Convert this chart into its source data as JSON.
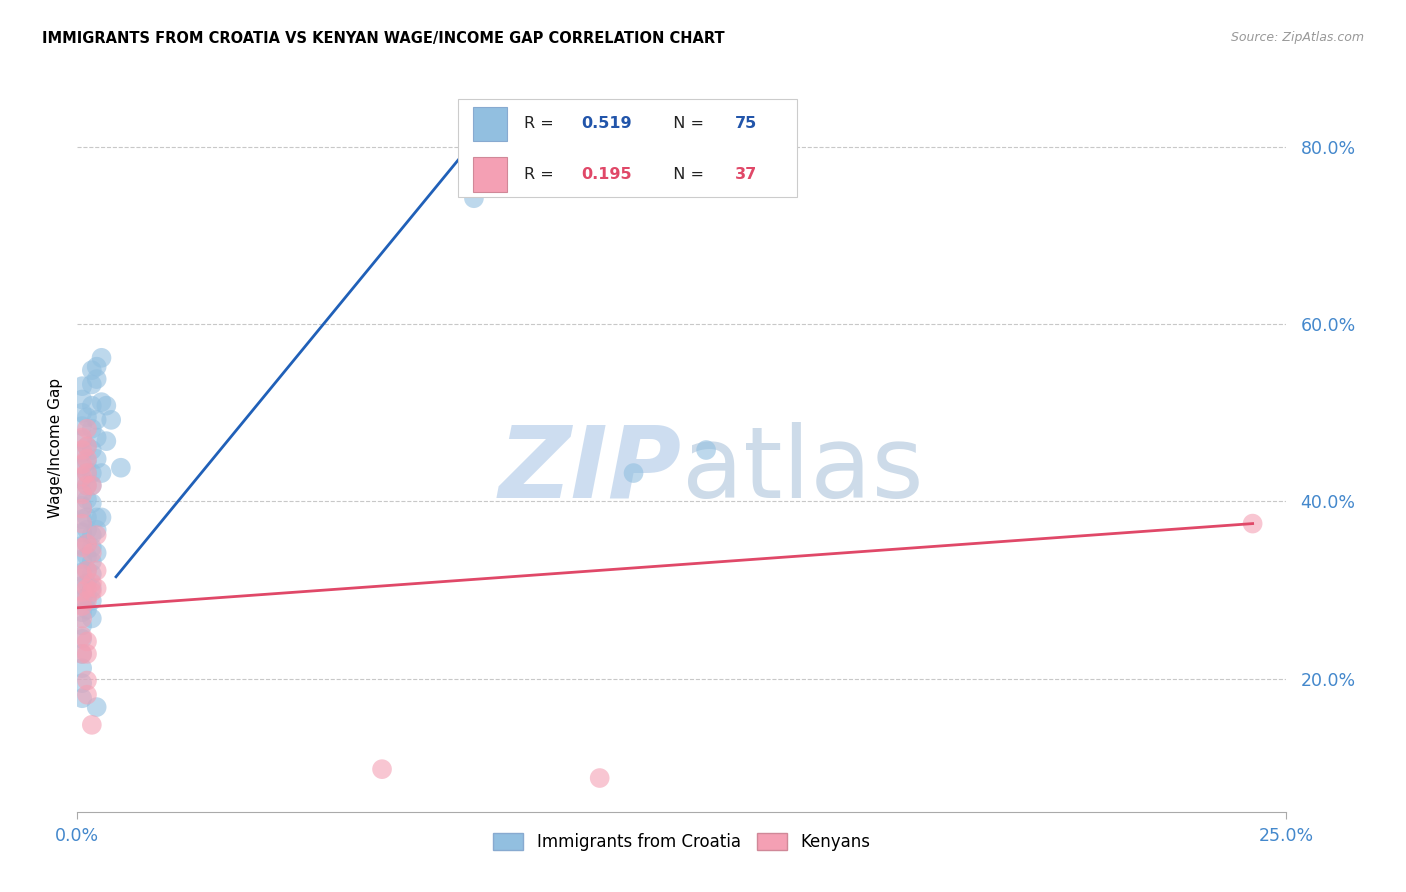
{
  "title": "IMMIGRANTS FROM CROATIA VS KENYAN WAGE/INCOME GAP CORRELATION CHART",
  "source": "Source: ZipAtlas.com",
  "ylabel": "Wage/Income Gap",
  "yticks": [
    0.2,
    0.4,
    0.6,
    0.8
  ],
  "ytick_labels": [
    "20.0%",
    "40.0%",
    "60.0%",
    "80.0%"
  ],
  "xticks": [
    0.0,
    0.25
  ],
  "xtick_labels": [
    "0.0%",
    "25.0%"
  ],
  "xmin": 0.0,
  "xmax": 0.25,
  "ymin": 0.05,
  "ymax": 0.87,
  "blue_line_x": [
    0.008,
    0.087
  ],
  "blue_line_y": [
    0.315,
    0.84
  ],
  "pink_line_x": [
    0.0,
    0.243
  ],
  "pink_line_y": [
    0.28,
    0.375
  ],
  "blue_scatter": [
    [
      0.001,
      0.53
    ],
    [
      0.001,
      0.515
    ],
    [
      0.001,
      0.5
    ],
    [
      0.001,
      0.485
    ],
    [
      0.001,
      0.47
    ],
    [
      0.001,
      0.455
    ],
    [
      0.001,
      0.44
    ],
    [
      0.001,
      0.425
    ],
    [
      0.001,
      0.41
    ],
    [
      0.001,
      0.395
    ],
    [
      0.001,
      0.38
    ],
    [
      0.001,
      0.365
    ],
    [
      0.001,
      0.35
    ],
    [
      0.001,
      0.335
    ],
    [
      0.001,
      0.32
    ],
    [
      0.001,
      0.305
    ],
    [
      0.001,
      0.29
    ],
    [
      0.001,
      0.275
    ],
    [
      0.001,
      0.26
    ],
    [
      0.001,
      0.245
    ],
    [
      0.001,
      0.228
    ],
    [
      0.001,
      0.212
    ],
    [
      0.001,
      0.195
    ],
    [
      0.001,
      0.178
    ],
    [
      0.002,
      0.495
    ],
    [
      0.002,
      0.462
    ],
    [
      0.002,
      0.445
    ],
    [
      0.002,
      0.432
    ],
    [
      0.002,
      0.418
    ],
    [
      0.002,
      0.402
    ],
    [
      0.002,
      0.382
    ],
    [
      0.002,
      0.368
    ],
    [
      0.002,
      0.352
    ],
    [
      0.002,
      0.338
    ],
    [
      0.002,
      0.322
    ],
    [
      0.002,
      0.308
    ],
    [
      0.002,
      0.292
    ],
    [
      0.002,
      0.278
    ],
    [
      0.003,
      0.548
    ],
    [
      0.003,
      0.532
    ],
    [
      0.003,
      0.508
    ],
    [
      0.003,
      0.482
    ],
    [
      0.003,
      0.458
    ],
    [
      0.003,
      0.432
    ],
    [
      0.003,
      0.418
    ],
    [
      0.003,
      0.398
    ],
    [
      0.003,
      0.362
    ],
    [
      0.003,
      0.348
    ],
    [
      0.003,
      0.332
    ],
    [
      0.003,
      0.318
    ],
    [
      0.003,
      0.302
    ],
    [
      0.003,
      0.288
    ],
    [
      0.003,
      0.268
    ],
    [
      0.004,
      0.552
    ],
    [
      0.004,
      0.538
    ],
    [
      0.004,
      0.492
    ],
    [
      0.004,
      0.472
    ],
    [
      0.004,
      0.448
    ],
    [
      0.004,
      0.382
    ],
    [
      0.004,
      0.368
    ],
    [
      0.004,
      0.342
    ],
    [
      0.004,
      0.168
    ],
    [
      0.005,
      0.562
    ],
    [
      0.005,
      0.512
    ],
    [
      0.005,
      0.432
    ],
    [
      0.005,
      0.382
    ],
    [
      0.006,
      0.508
    ],
    [
      0.006,
      0.468
    ],
    [
      0.007,
      0.492
    ],
    [
      0.009,
      0.438
    ],
    [
      0.082,
      0.742
    ],
    [
      0.115,
      0.432
    ],
    [
      0.13,
      0.458
    ]
  ],
  "pink_scatter": [
    [
      0.001,
      0.472
    ],
    [
      0.001,
      0.458
    ],
    [
      0.001,
      0.442
    ],
    [
      0.001,
      0.428
    ],
    [
      0.001,
      0.408
    ],
    [
      0.001,
      0.392
    ],
    [
      0.001,
      0.375
    ],
    [
      0.001,
      0.348
    ],
    [
      0.001,
      0.318
    ],
    [
      0.001,
      0.298
    ],
    [
      0.001,
      0.282
    ],
    [
      0.001,
      0.268
    ],
    [
      0.001,
      0.248
    ],
    [
      0.001,
      0.228
    ],
    [
      0.002,
      0.482
    ],
    [
      0.002,
      0.462
    ],
    [
      0.002,
      0.448
    ],
    [
      0.002,
      0.432
    ],
    [
      0.002,
      0.418
    ],
    [
      0.002,
      0.352
    ],
    [
      0.002,
      0.322
    ],
    [
      0.002,
      0.302
    ],
    [
      0.002,
      0.288
    ],
    [
      0.002,
      0.242
    ],
    [
      0.002,
      0.228
    ],
    [
      0.002,
      0.198
    ],
    [
      0.002,
      0.182
    ],
    [
      0.003,
      0.418
    ],
    [
      0.003,
      0.342
    ],
    [
      0.003,
      0.308
    ],
    [
      0.003,
      0.298
    ],
    [
      0.003,
      0.148
    ],
    [
      0.004,
      0.362
    ],
    [
      0.004,
      0.322
    ],
    [
      0.004,
      0.302
    ],
    [
      0.063,
      0.098
    ],
    [
      0.108,
      0.088
    ],
    [
      0.243,
      0.375
    ]
  ],
  "blue_dot_color": "#92bfe0",
  "pink_dot_color": "#f4a0b4",
  "blue_line_color": "#2060b8",
  "pink_line_color": "#e04868",
  "grid_color": "#c8c8c8",
  "background_color": "#ffffff",
  "title_fontsize": 10.5,
  "tick_color": "#4488cc",
  "legend_text_color": "#2255aa",
  "legend_value_color": "#2255aa",
  "watermark_zip_color": "#c5d8ee",
  "watermark_atlas_color": "#b8cce0"
}
